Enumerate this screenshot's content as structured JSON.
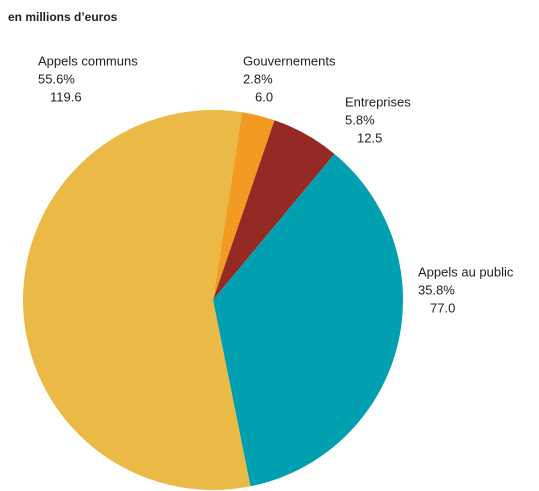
{
  "chart_data": {
    "type": "pie",
    "subtitle": "en millions d’euros",
    "categories": [
      "Gouvernements",
      "Entreprises",
      "Appels au public",
      "Appels communs"
    ],
    "values": [
      2.8,
      5.8,
      35.8,
      55.6
    ],
    "value_labels": [
      "2.8%",
      "5.8%",
      "35.8%",
      "55.6%"
    ],
    "amounts": [
      "6.0",
      "12.5",
      "77.0",
      "119.6"
    ],
    "colors": [
      "#f39a22",
      "#952a25",
      "#00a0b0",
      "#ebb945"
    ]
  }
}
